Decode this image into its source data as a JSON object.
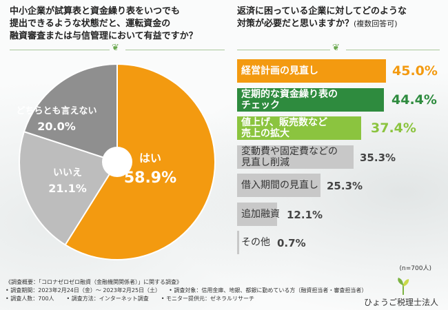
{
  "left_question": {
    "line1": "中小企業が試算表と資金繰り表をいつでも",
    "line2": "提出できるような状態だと、運転資金の",
    "line3": "融資審査または与信管理において有益ですか？"
  },
  "right_question": {
    "line1": "返済に困っている企業に対してどのような",
    "line2": "対策が必要だと思いますか？",
    "note": "(複数回答可)"
  },
  "colors": {
    "orange": "#f39a10",
    "green_dark": "#2e8b3e",
    "green_light": "#8bc43f",
    "gray": "#c8c8c8",
    "gray_dark": "#8f8f8f",
    "gray_mid": "#bdbdbd"
  },
  "chart_data": [
    {
      "type": "pie",
      "title": "中小企業が試算表と資金繰り表をいつでも提出できるような状態だと、運転資金の融資審査または与信管理において有益ですか？",
      "slices": [
        {
          "label": "はい",
          "value": 58.9,
          "display": "58.9%"
        },
        {
          "label": "いいえ",
          "value": 21.1,
          "display": "21.1%"
        },
        {
          "label": "どちらとも言えない",
          "value": 20.0,
          "display": "20.0%"
        }
      ]
    },
    {
      "type": "bar",
      "orientation": "horizontal",
      "title": "返済に困っている企業に対してどのような対策が必要だと思いますか？(複数回答可)",
      "categories": [
        [
          "経営計画の見直し"
        ],
        [
          "定期的な資金繰り表の",
          "チェック"
        ],
        [
          "値上げ、販売数など",
          "売上の拡大"
        ],
        [
          "変動費や固定費などの",
          "見直し削減"
        ],
        [
          "借入期間の見直し"
        ],
        [
          "追加融資"
        ],
        [
          "その他"
        ]
      ],
      "values": [
        45.0,
        44.4,
        37.4,
        35.3,
        25.3,
        12.1,
        0.7
      ],
      "value_labels": [
        "45.0%",
        "44.4%",
        "37.4%",
        "35.3%",
        "25.3%",
        "12.1%",
        "0.7%"
      ],
      "xlim": [
        0,
        45.0
      ],
      "n_label": "(n=700人)"
    }
  ],
  "footer": {
    "line1": "《調査概要：「コロナゼロゼロ融資（金融機関関係者）」に関する調査》",
    "period": "• 調査期間：2023年2月24日（金）〜 2023年2月25日（土）",
    "target": "• 調査対象：信用金庫、地銀、都銀に勤めている方（融資担当者・審査担当者）",
    "people": "• 調査人数：700人",
    "method": "• 調査方法：インターネット調査",
    "monitor": "• モニター提供元：ゼネラルリサーチ"
  },
  "logo": {
    "text": "ひょうご税理士法人",
    "icon": "sprout-icon"
  },
  "leaf_icon": "leaf-icon"
}
